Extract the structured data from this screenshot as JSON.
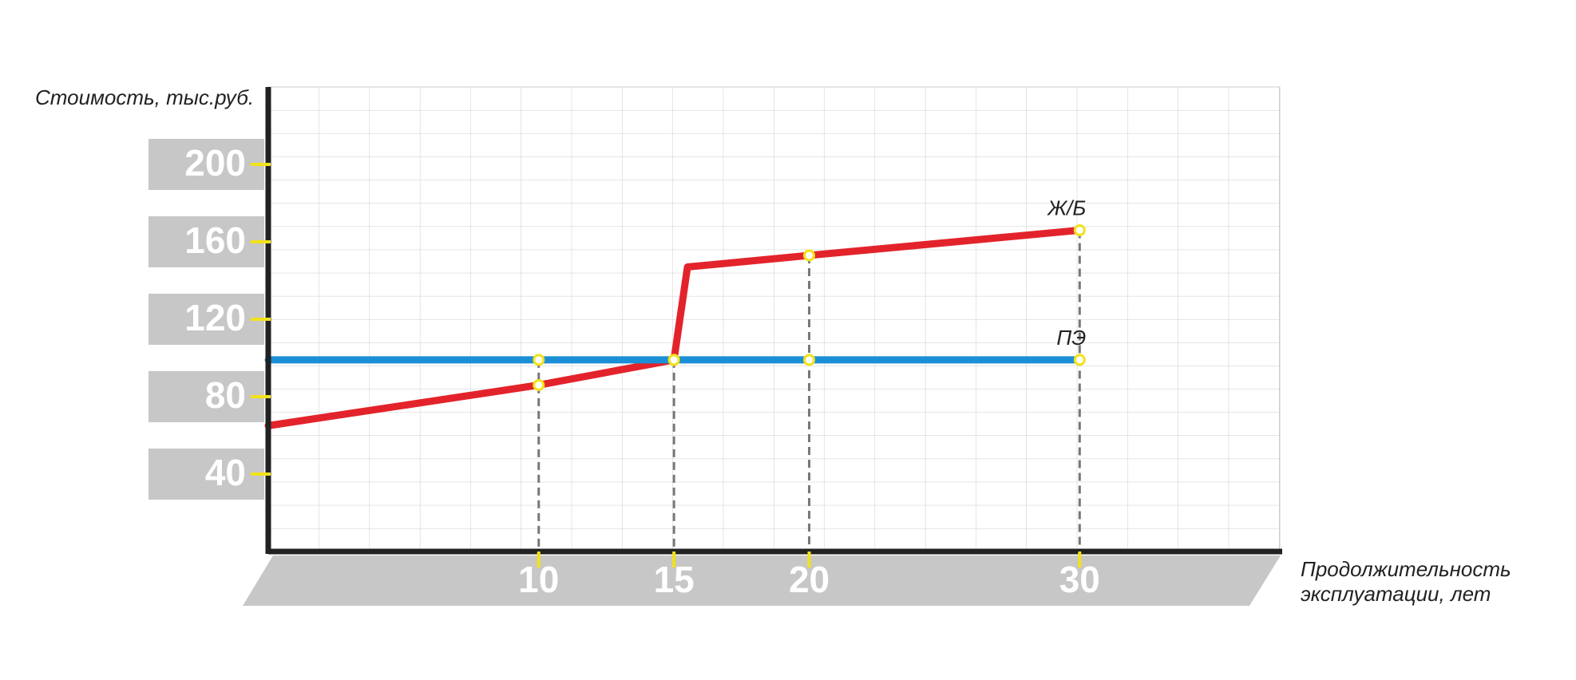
{
  "chart_data": {
    "type": "line",
    "ylabel": "Стоимость, тыс.руб.",
    "xlabel": [
      "Продолжительность",
      "эксплуатации, лет"
    ],
    "x": [
      0,
      10,
      15,
      15.5,
      20,
      30
    ],
    "series": [
      {
        "name": "Ж/Б",
        "color": "#e3232b",
        "values": [
          65,
          86,
          99,
          147,
          153,
          166
        ]
      },
      {
        "name": "ПЭ",
        "color": "#1b8fd6",
        "values": [
          99,
          99,
          99,
          99,
          99,
          99
        ]
      }
    ],
    "xlim": [
      0,
      37.4
    ],
    "xticks": [
      10,
      15,
      20,
      30
    ],
    "ylim": [
      0,
      240
    ],
    "yticks": [
      40,
      80,
      120,
      160,
      200
    ],
    "grid": true
  }
}
